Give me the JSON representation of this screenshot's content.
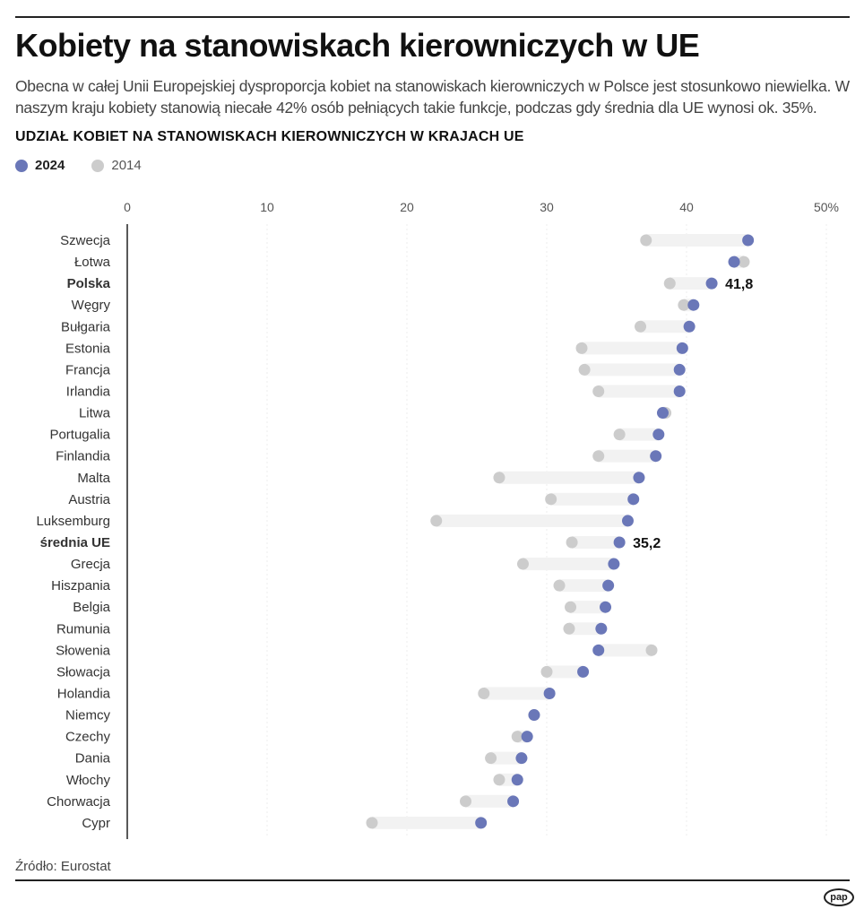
{
  "title": "Kobiety na stanowiskach kierowniczych w UE",
  "subtitle": "Obecna w całej Unii Europejskiej dysproporcja kobiet na stanowiskach kierowniczych w Polsce jest stosunkowo niewielka. W naszym kraju kobiety stanowią niecałe 42% osób pełniących takie funkcje, podczas gdy średnia dla UE wynosi ok. 35%.",
  "source": "Źródło: Eurostat",
  "logo": "pap",
  "chart_data": {
    "type": "dumbbell",
    "title": "UDZIAŁ KOBIET NA STANOWISKACH KIEROWNICZYCH W KRAJACH UE",
    "xlim": [
      0,
      50
    ],
    "x_ticks": [
      "0",
      "10",
      "20",
      "30",
      "40",
      "50%"
    ],
    "grid": true,
    "legend_placement": "top-left",
    "series": [
      {
        "name": "2024",
        "color": "#6a77b8"
      },
      {
        "name": "2014",
        "color": "#cccccc"
      }
    ],
    "categories": [
      "Szwecja",
      "Łotwa",
      "Polska",
      "Węgry",
      "Bułgaria",
      "Estonia",
      "Francja",
      "Irlandia",
      "Litwa",
      "Portugalia",
      "Finlandia",
      "Malta",
      "Austria",
      "Luksemburg",
      "średnia UE",
      "Grecja",
      "Hiszpania",
      "Belgia",
      "Rumunia",
      "Słowenia",
      "Słowacja",
      "Holandia",
      "Niemcy",
      "Czechy",
      "Dania",
      "Włochy",
      "Chorwacja",
      "Cypr"
    ],
    "highlighted": [
      "Polska",
      "średnia UE"
    ],
    "values_2024": [
      44.4,
      43.4,
      41.8,
      40.5,
      40.2,
      39.7,
      39.5,
      39.5,
      38.3,
      38.0,
      37.8,
      36.6,
      36.2,
      35.8,
      35.2,
      34.8,
      34.4,
      34.2,
      33.9,
      33.7,
      32.6,
      30.2,
      29.1,
      28.6,
      28.2,
      27.9,
      27.6,
      25.3
    ],
    "values_2014": [
      37.1,
      44.1,
      38.8,
      39.8,
      36.7,
      32.5,
      32.7,
      33.7,
      38.5,
      35.2,
      33.7,
      26.6,
      30.3,
      22.1,
      31.8,
      28.3,
      30.9,
      31.7,
      31.6,
      37.5,
      30.0,
      25.5,
      29.1,
      27.9,
      26.0,
      26.6,
      24.2,
      17.5
    ],
    "data_labels": {
      "Polska": "41,8",
      "średnia UE": "35,2"
    }
  }
}
